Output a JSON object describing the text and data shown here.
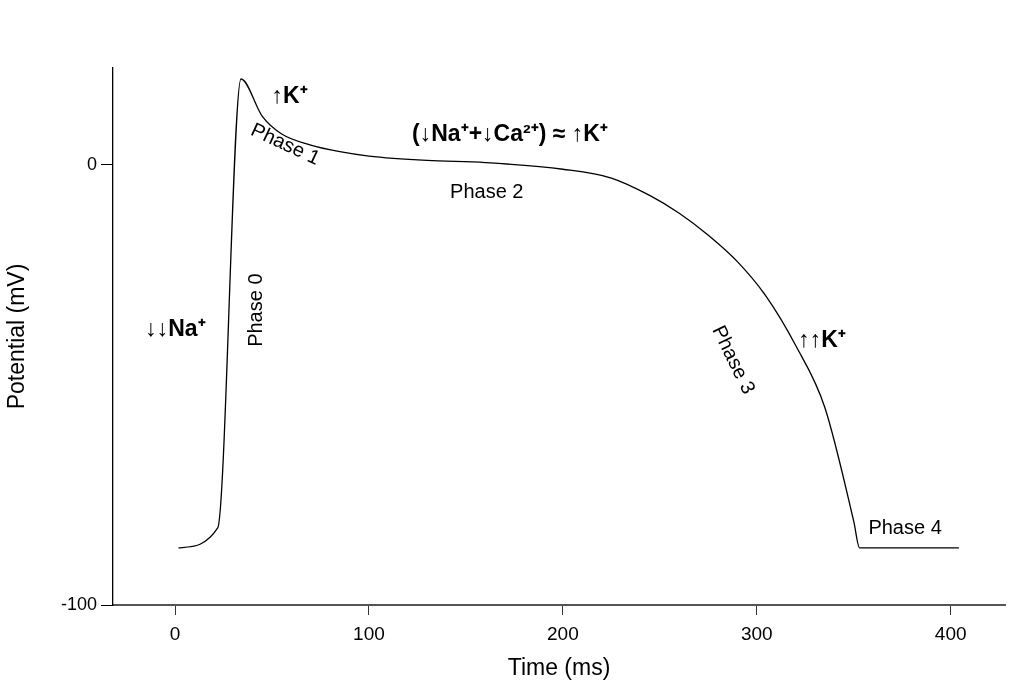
{
  "chart_data": {
    "type": "line",
    "xlabel": "Time (ms)",
    "ylabel": "Potential (mV)",
    "series": [
      {
        "color": "#000000",
        "x": [
          2,
          22,
          34,
          45,
          55,
          70,
          85,
          100,
          130,
          160,
          200,
          225,
          245,
          260,
          275,
          290,
          305,
          320,
          335,
          350,
          353,
          404
        ],
        "values": [
          -87,
          -82.5,
          19.5,
          11,
          7,
          4.5,
          3,
          2,
          1,
          0.5,
          -1,
          -3,
          -7,
          -11,
          -16,
          -22,
          -30,
          -41,
          -55,
          -81,
          -87,
          -87
        ]
      }
    ],
    "xlim": [
      -32,
      428
    ],
    "xticks": [
      0,
      100,
      200,
      300,
      400
    ],
    "ylim": [
      -100,
      22
    ],
    "yticks": [
      0,
      -100
    ],
    "grid": false,
    "legend": false,
    "marker": "none",
    "line_style": "solid",
    "annotations": [
      "↑K⁺",
      "(↓Na⁺+↓Ca²⁺) ≈ ↑K⁺",
      "Phase 1",
      "Phase 2",
      "Phase 0",
      "↓↓Na⁺",
      "Phase 3",
      "↑↑K⁺",
      "Phase 4"
    ]
  }
}
